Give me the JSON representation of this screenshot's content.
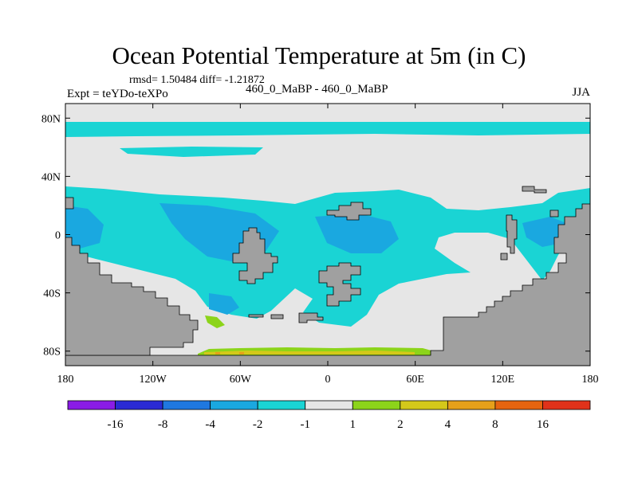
{
  "figure": {
    "title": "Ocean Potential Temperature at 5m (in C)",
    "stats_line": "rmsd= 1.50484 diff= -1.21872",
    "left_label": "Expt = teYDo-teXPo",
    "center_label": "460_0_MaBP - 460_0_MaBP",
    "right_label": "JJA"
  },
  "chart_data": {
    "type": "heatmap",
    "title": "Ocean Potential Temperature at 5m (in C)",
    "xlabel": "",
    "ylabel": "",
    "xlim": [
      -180,
      180
    ],
    "ylim": [
      -90,
      90
    ],
    "x_ticks": [
      {
        "value": -180,
        "label": "180"
      },
      {
        "value": -120,
        "label": "120W"
      },
      {
        "value": -60,
        "label": "60W"
      },
      {
        "value": 0,
        "label": "0"
      },
      {
        "value": 60,
        "label": "60E"
      },
      {
        "value": 120,
        "label": "120E"
      },
      {
        "value": 180,
        "label": "180"
      }
    ],
    "y_ticks": [
      {
        "value": 80,
        "label": "80N"
      },
      {
        "value": 40,
        "label": "40N"
      },
      {
        "value": 0,
        "label": "0"
      },
      {
        "value": -40,
        "label": "40S"
      },
      {
        "value": -80,
        "label": "80S"
      }
    ],
    "colorbar": {
      "colors": [
        "#8a1ce6",
        "#2a2ad4",
        "#1f78e0",
        "#1aa8e0",
        "#1ad4d4",
        "#e6e6e6",
        "#8cd41a",
        "#d4c81a",
        "#e6a01a",
        "#e6640f",
        "#e0321a"
      ],
      "labels": [
        "-16",
        "-8",
        "-4",
        "-2",
        "-1",
        "1",
        "2",
        "4",
        "8",
        "16"
      ]
    },
    "land_color": "#a0a0a0",
    "regions": [
      {
        "name": "tropical-ocean-band",
        "class": "-2 to -1"
      },
      {
        "name": "cold-anomaly-patches",
        "class": "-4 to -2"
      },
      {
        "name": "neutral-ocean",
        "class": "-1 to 1"
      },
      {
        "name": "south-pacific-warm-patch",
        "class": "1 to 2"
      },
      {
        "name": "antarctic-coastal-warm-strip",
        "class": "1 to 4"
      }
    ]
  }
}
